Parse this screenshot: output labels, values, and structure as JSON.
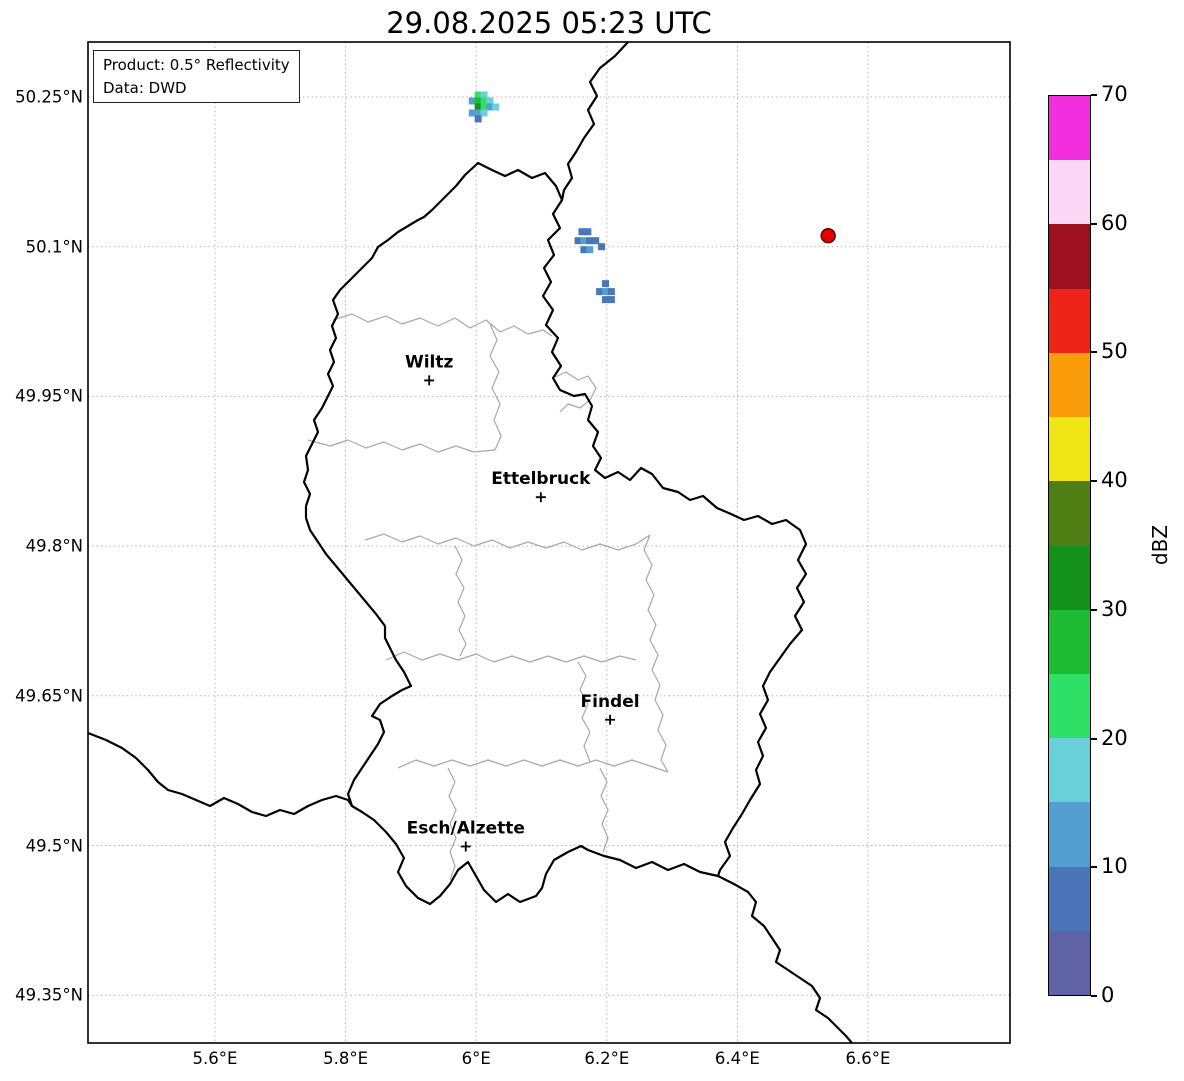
{
  "title": "29.08.2025 05:23 UTC",
  "info_box": {
    "product": "Product: 0.5° Reflectivity",
    "data": "Data: DWD"
  },
  "axes": {
    "x_ticks": [
      {
        "label": "5.6°E",
        "lon": 5.6
      },
      {
        "label": "5.8°E",
        "lon": 5.8
      },
      {
        "label": "6°E",
        "lon": 6.0
      },
      {
        "label": "6.2°E",
        "lon": 6.2
      },
      {
        "label": "6.4°E",
        "lon": 6.4
      },
      {
        "label": "6.6°E",
        "lon": 6.6
      }
    ],
    "y_ticks": [
      {
        "label": "50.25°N",
        "lat": 50.25
      },
      {
        "label": "50.1°N",
        "lat": 50.1
      },
      {
        "label": "49.95°N",
        "lat": 49.95
      },
      {
        "label": "49.8°N",
        "lat": 49.8
      },
      {
        "label": "49.65°N",
        "lat": 49.65
      },
      {
        "label": "49.5°N",
        "lat": 49.5
      },
      {
        "label": "49.35°N",
        "lat": 49.35
      }
    ]
  },
  "colorbar": {
    "label": "dBZ",
    "min": 0,
    "max": 70,
    "ticks": [
      {
        "value": 0,
        "label": "0"
      },
      {
        "value": 10,
        "label": "10"
      },
      {
        "value": 20,
        "label": "20"
      },
      {
        "value": 30,
        "label": "30"
      },
      {
        "value": 40,
        "label": "40"
      },
      {
        "value": 50,
        "label": "50"
      },
      {
        "value": 60,
        "label": "60"
      },
      {
        "value": 70,
        "label": "70"
      }
    ],
    "bands": [
      {
        "from": 0,
        "to": 5,
        "color": "#5f63a6"
      },
      {
        "from": 5,
        "to": 10,
        "color": "#4b74b9"
      },
      {
        "from": 10,
        "to": 15,
        "color": "#539fd2"
      },
      {
        "from": 15,
        "to": 20,
        "color": "#69d0da"
      },
      {
        "from": 20,
        "to": 25,
        "color": "#2ee166"
      },
      {
        "from": 25,
        "to": 30,
        "color": "#1cbd33"
      },
      {
        "from": 30,
        "to": 35,
        "color": "#13911a"
      },
      {
        "from": 35,
        "to": 40,
        "color": "#4f7e15"
      },
      {
        "from": 40,
        "to": 45,
        "color": "#efe514"
      },
      {
        "from": 45,
        "to": 50,
        "color": "#fb9d0b"
      },
      {
        "from": 50,
        "to": 55,
        "color": "#ee2418"
      },
      {
        "from": 55,
        "to": 60,
        "color": "#9e0f20"
      },
      {
        "from": 60,
        "to": 65,
        "color": "#fbd7f5"
      },
      {
        "from": 65,
        "to": 70,
        "color": "#f32ede"
      }
    ]
  },
  "chart_data": {
    "type": "radar-reflectivity-map",
    "title": "29.08.2025 05:23 UTC",
    "product": "0.5° Reflectivity",
    "source": "DWD",
    "units": "dBZ",
    "lon_range": [
      5.405,
      6.817
    ],
    "lat_range": [
      49.302,
      50.305
    ],
    "cities": [
      {
        "name": "Wiltz",
        "lon": 5.928,
        "lat": 49.966
      },
      {
        "name": "Ettelbruck",
        "lon": 6.099,
        "lat": 49.849
      },
      {
        "name": "Findel",
        "lon": 6.205,
        "lat": 49.626
      },
      {
        "name": "Esch/Alzette",
        "lon": 5.984,
        "lat": 49.499
      }
    ],
    "radar_site": {
      "lon": 6.539,
      "lat": 50.111,
      "color": "#e50000"
    },
    "echoes": [
      {
        "name": "cluster-north-border",
        "cells": [
          [
            6.003,
            50.252,
            22
          ],
          [
            6.012,
            50.252,
            17
          ],
          [
            5.994,
            50.246,
            12
          ],
          [
            6.003,
            50.246,
            27
          ],
          [
            6.012,
            50.246,
            22
          ],
          [
            6.021,
            50.246,
            17
          ],
          [
            6.003,
            50.24,
            32
          ],
          [
            6.012,
            50.24,
            24
          ],
          [
            6.021,
            50.24,
            14
          ],
          [
            6.03,
            50.24,
            19
          ],
          [
            5.994,
            50.234,
            10
          ],
          [
            6.003,
            50.234,
            13
          ],
          [
            6.012,
            50.234,
            18
          ],
          [
            6.003,
            50.228,
            9
          ]
        ]
      },
      {
        "name": "cluster-east-upper",
        "cells": [
          [
            6.162,
            50.115,
            8
          ],
          [
            6.171,
            50.115,
            7
          ],
          [
            6.156,
            50.106,
            9
          ],
          [
            6.165,
            50.106,
            11
          ],
          [
            6.174,
            50.106,
            9
          ],
          [
            6.183,
            50.106,
            8
          ],
          [
            6.165,
            50.097,
            8
          ],
          [
            6.174,
            50.097,
            10
          ],
          [
            6.192,
            50.1,
            7
          ]
        ]
      },
      {
        "name": "cluster-east-lower",
        "cells": [
          [
            6.198,
            50.063,
            8
          ],
          [
            6.189,
            50.055,
            9
          ],
          [
            6.198,
            50.055,
            11
          ],
          [
            6.207,
            50.055,
            8
          ],
          [
            6.198,
            50.047,
            9
          ],
          [
            6.207,
            50.047,
            7
          ]
        ]
      }
    ]
  }
}
